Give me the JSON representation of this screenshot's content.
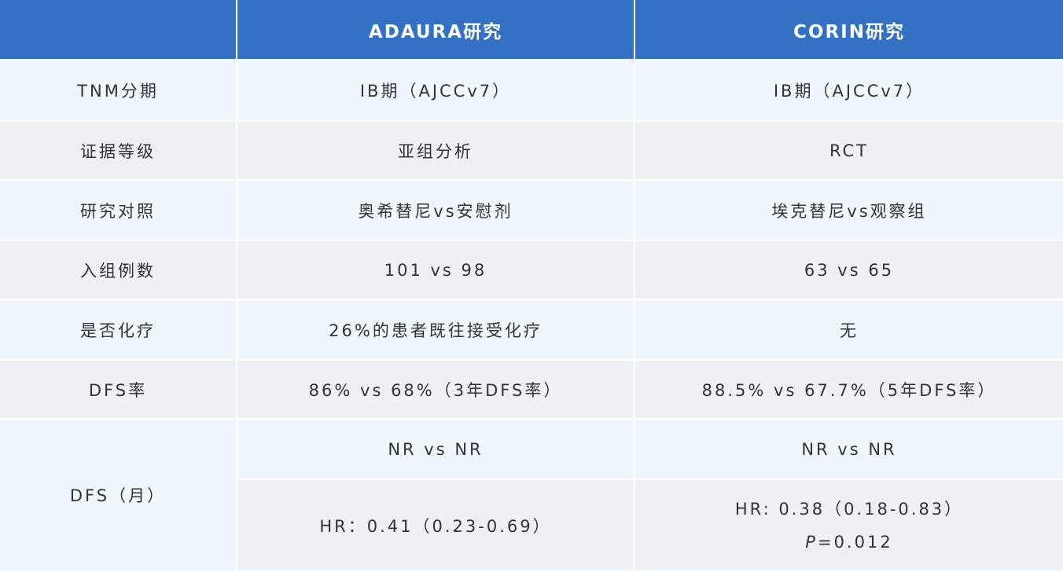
{
  "header": {
    "corner": "",
    "col1": "ADAURA研究",
    "col2": "CORIN研究"
  },
  "rows": [
    {
      "label": "TNM分期",
      "adaura": "IB期（AJCCv7）",
      "corin": "IB期（AJCCv7）"
    },
    {
      "label": "证据等级",
      "adaura": "亚组分析",
      "corin": "RCT"
    },
    {
      "label": "研究对照",
      "adaura": "奥希替尼vs安慰剂",
      "corin": "埃克替尼vs观察组"
    },
    {
      "label": "入组例数",
      "adaura": "101 vs 98",
      "corin": "63 vs 65"
    },
    {
      "label": "是否化疗",
      "adaura": "26%的患者既往接受化疗",
      "corin": "无"
    },
    {
      "label": "DFS率",
      "adaura": "86% vs 68%（3年DFS率）",
      "corin": "88.5% vs 67.7%（5年DFS率）"
    }
  ],
  "dfs": {
    "label": "DFS（月）",
    "adaura_median": "NR vs NR",
    "corin_median": "NR vs NR",
    "adaura_hr": "HR：0.41（0.23-0.69）",
    "corin_hr": "HR: 0.38（0.18-0.83）",
    "corin_p_symbol": "P",
    "corin_p_value": "=0.012"
  },
  "colors": {
    "header": "#3470c4",
    "row_light_blue": "#f0f6fd",
    "row_light_gray": "#eef1f4"
  }
}
